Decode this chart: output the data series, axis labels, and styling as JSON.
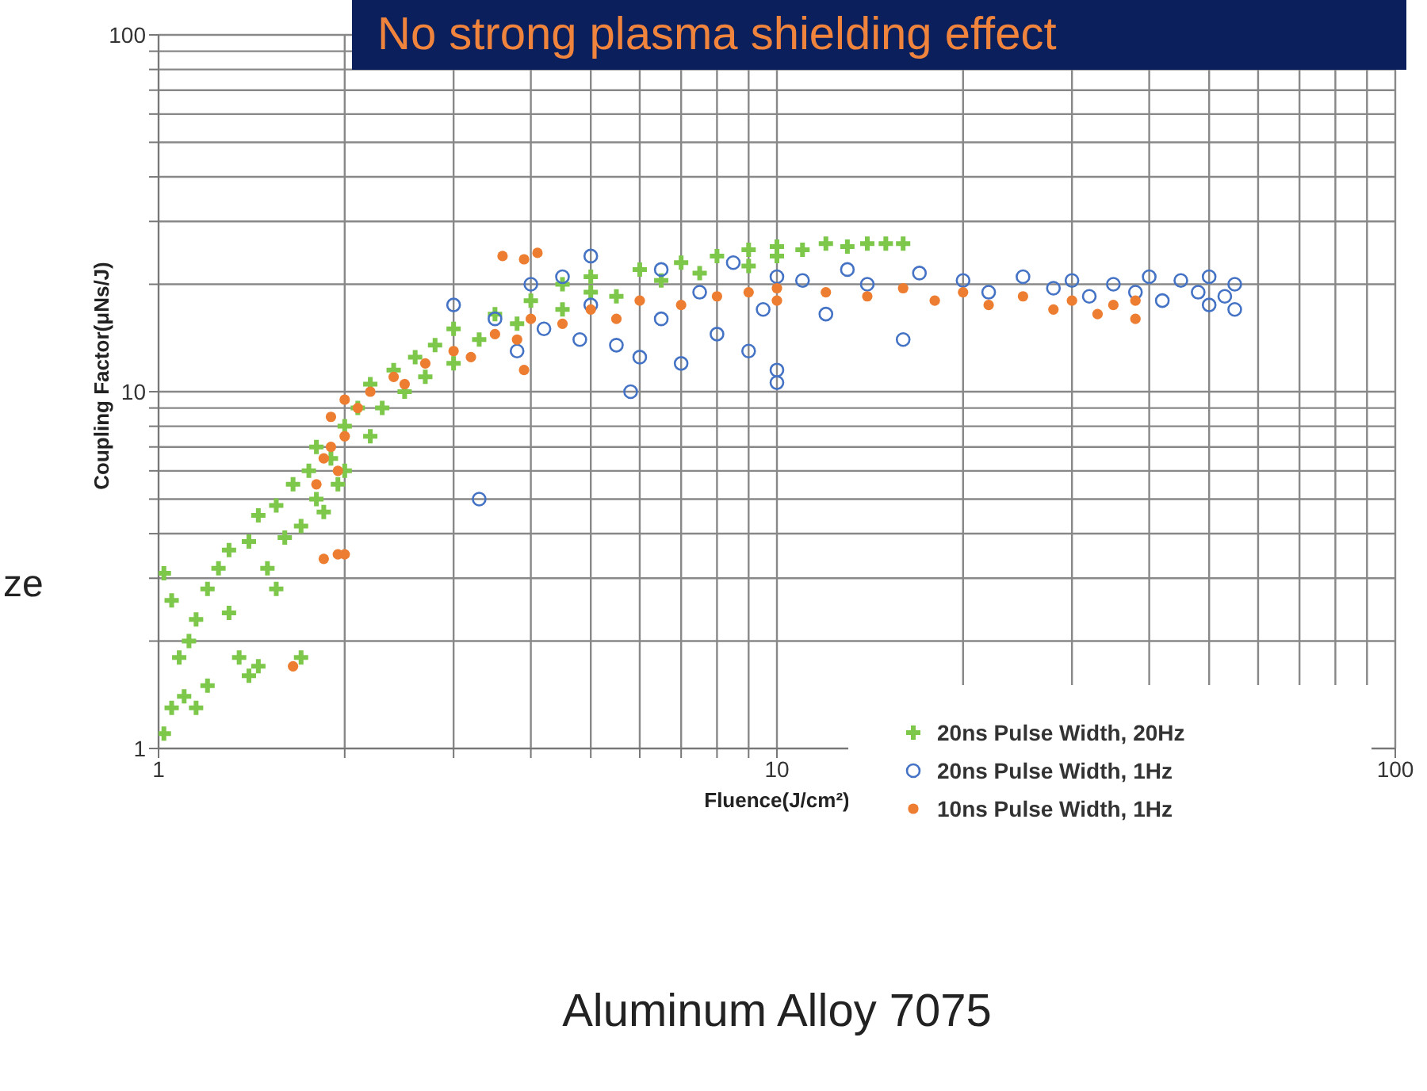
{
  "chart_data": {
    "type": "scatter",
    "title": "No strong plasma shielding effect",
    "xlabel": "Fluence(J/cm²)",
    "ylabel": "Coupling Factor(μNs/J)",
    "annotations": [
      "Aluminum Alloy 7075",
      "ze"
    ],
    "log": "xy",
    "grid": true,
    "legend": "bottom right",
    "xlim": [
      1,
      100
    ],
    "ylim": [
      1,
      100
    ],
    "xticks": [
      1,
      {
        "value": 2,
        "label": null
      },
      {
        "value": 3,
        "label": null
      },
      {
        "value": 4,
        "label": null
      },
      {
        "value": 5,
        "label": null
      },
      {
        "value": 6,
        "label": null
      },
      {
        "value": 7,
        "label": null
      },
      {
        "value": 8,
        "label": null
      },
      {
        "value": 9,
        "label": null
      },
      10,
      {
        "value": 20,
        "label": null
      },
      {
        "value": 30,
        "label": null
      },
      {
        "value": 40,
        "label": null
      },
      {
        "value": 50,
        "label": null
      },
      {
        "value": 60,
        "label": null
      },
      {
        "value": 70,
        "label": null
      },
      {
        "value": 80,
        "label": null
      },
      {
        "value": 90,
        "label": null
      },
      100
    ],
    "yticks": [
      1,
      {
        "value": 2,
        "label": null
      },
      {
        "value": 3,
        "label": null
      },
      {
        "value": 4,
        "label": null
      },
      {
        "value": 5,
        "label": null
      },
      {
        "value": 6,
        "label": null
      },
      {
        "value": 7,
        "label": null
      },
      {
        "value": 8,
        "label": null
      },
      {
        "value": 9,
        "label": null
      },
      10,
      {
        "value": 20,
        "label": null
      },
      {
        "value": 30,
        "label": null
      },
      {
        "value": 40,
        "label": null
      },
      {
        "value": 50,
        "label": null
      },
      {
        "value": 60,
        "label": null
      },
      {
        "value": 70,
        "label": null
      },
      {
        "value": 80,
        "label": null
      },
      {
        "value": 90,
        "label": null
      },
      100
    ],
    "series": [
      {
        "name": "20ns Pulse Width, 20Hz",
        "color": "#7dc74a",
        "marker": "cross",
        "x": [
          1.02,
          1.05,
          1.1,
          1.15,
          1.2,
          1.08,
          1.12,
          1.02,
          1.05,
          1.15,
          1.2,
          1.25,
          1.3,
          1.35,
          1.4,
          1.45,
          1.3,
          1.4,
          1.45,
          1.5,
          1.55,
          1.6,
          1.55,
          1.65,
          1.7,
          1.7,
          1.75,
          1.8,
          1.8,
          1.85,
          1.9,
          1.95,
          2.0,
          2.0,
          2.1,
          2.2,
          2.2,
          2.3,
          2.4,
          2.5,
          2.6,
          2.7,
          2.8,
          3.0,
          3.0,
          3.3,
          3.5,
          3.8,
          4.0,
          4.5,
          4.5,
          5.0,
          5.0,
          5.5,
          6.0,
          6.5,
          7.0,
          7.5,
          8.0,
          9.0,
          9.0,
          10,
          10,
          11,
          12,
          13,
          14,
          15,
          16
        ],
        "values": [
          1.1,
          1.3,
          1.4,
          1.3,
          1.5,
          1.8,
          2.0,
          3.1,
          2.6,
          2.3,
          2.8,
          3.2,
          2.4,
          1.8,
          1.6,
          1.7,
          3.6,
          3.8,
          4.5,
          3.2,
          2.8,
          3.9,
          4.8,
          5.5,
          4.2,
          1.8,
          6.0,
          5.0,
          7.0,
          4.6,
          6.5,
          5.5,
          8.0,
          6.0,
          9.0,
          7.5,
          10.5,
          9.0,
          11.5,
          10.0,
          12.5,
          11.0,
          13.5,
          12.0,
          15.0,
          14.0,
          16.5,
          15.5,
          18.0,
          17.0,
          20.0,
          19.0,
          21.0,
          18.5,
          22.0,
          20.5,
          23.0,
          21.5,
          24.0,
          22.5,
          25.0,
          24.0,
          25.5,
          25.0,
          26.0,
          25.5,
          26.0,
          26.0,
          26.0
        ]
      },
      {
        "name": "20ns Pulse Width, 1Hz",
        "color": "#4472c4",
        "marker": "circle",
        "x": [
          3.0,
          3.3,
          3.5,
          3.8,
          4.0,
          4.2,
          4.5,
          4.8,
          5.0,
          5.0,
          5.5,
          5.8,
          6.0,
          6.5,
          6.5,
          7.0,
          7.5,
          8.0,
          8.5,
          9.0,
          9.5,
          10,
          10,
          10,
          11,
          12,
          13,
          14,
          16,
          17,
          20,
          22,
          25,
          28,
          30,
          32,
          35,
          38,
          40,
          42,
          45,
          48,
          50,
          50,
          53,
          55,
          55
        ],
        "values": [
          17.5,
          5.0,
          16.0,
          13.0,
          20.0,
          15.0,
          21.0,
          14.0,
          24.0,
          17.5,
          13.5,
          10.0,
          12.5,
          22.0,
          16.0,
          12.0,
          19.0,
          14.5,
          23.0,
          13.0,
          17.0,
          10.6,
          11.5,
          21.0,
          20.5,
          16.5,
          22.0,
          20.0,
          14.0,
          21.5,
          20.5,
          19.0,
          21.0,
          19.5,
          20.5,
          18.5,
          20.0,
          19.0,
          21.0,
          18.0,
          20.5,
          19.0,
          17.5,
          21.0,
          18.5,
          20.0,
          17.0
        ]
      },
      {
        "name": "10ns Pulse Width, 1Hz",
        "color": "#ed7d31",
        "marker": "circle",
        "x": [
          1.65,
          1.85,
          1.95,
          2.0,
          1.8,
          1.85,
          1.9,
          1.95,
          2.0,
          1.9,
          2.0,
          2.1,
          2.2,
          2.4,
          2.5,
          2.7,
          3.0,
          3.2,
          3.5,
          3.8,
          4.0,
          4.5,
          5.0,
          5.5,
          6.0,
          7.0,
          8.0,
          9.0,
          10,
          10,
          12,
          14,
          16,
          18,
          20,
          22,
          25,
          28,
          30,
          33,
          35,
          38,
          38,
          3.6,
          3.9,
          4.1,
          3.9
        ],
        "values": [
          1.7,
          3.4,
          3.5,
          3.5,
          5.5,
          6.5,
          7.0,
          6.0,
          7.5,
          8.5,
          9.5,
          9.0,
          10.0,
          11.0,
          10.5,
          12.0,
          13.0,
          12.5,
          14.5,
          14.0,
          16.0,
          15.5,
          17.0,
          16.0,
          18.0,
          17.5,
          18.5,
          19.0,
          19.5,
          18.0,
          19.0,
          18.5,
          19.5,
          18.0,
          19.0,
          17.5,
          18.5,
          17.0,
          18.0,
          16.5,
          17.5,
          16.0,
          18.0,
          24.0,
          23.5,
          24.5,
          11.5
        ]
      }
    ]
  }
}
